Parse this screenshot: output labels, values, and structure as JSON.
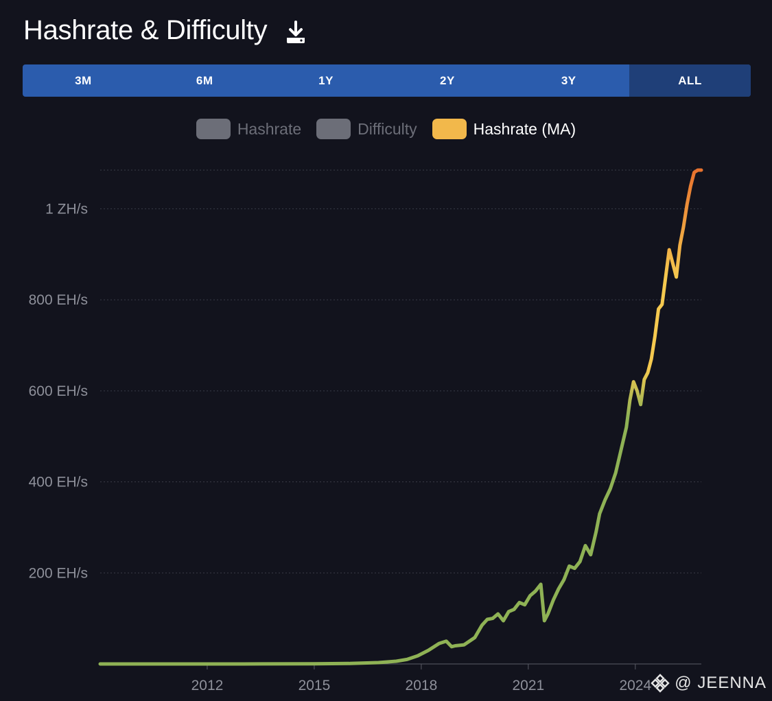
{
  "title": "Hashrate & Difficulty",
  "download_icon": "download-icon",
  "ranges": [
    {
      "label": "3M",
      "active": false
    },
    {
      "label": "6M",
      "active": false
    },
    {
      "label": "1Y",
      "active": false
    },
    {
      "label": "2Y",
      "active": false
    },
    {
      "label": "3Y",
      "active": false
    },
    {
      "label": "ALL",
      "active": true
    }
  ],
  "legend": [
    {
      "label": "Hashrate",
      "color": "#6c6e78",
      "enabled": false
    },
    {
      "label": "Difficulty",
      "color": "#6c6e78",
      "enabled": false
    },
    {
      "label": "Hashrate (MA)",
      "color": "#f2b84b",
      "enabled": true
    }
  ],
  "watermark": {
    "icon": "binance-logo-icon",
    "text": "@ JEENNA"
  },
  "colors": {
    "background": "#12131d",
    "grid": "#3a3c48",
    "line_low": "#8fb255",
    "line_mid": "#f5c94f",
    "line_high": "#e8722e"
  },
  "chart_data": {
    "type": "line",
    "title": "",
    "xlabel": "",
    "ylabel": "",
    "x_ticks": [
      "2012",
      "2015",
      "2018",
      "2021",
      "2024"
    ],
    "y_ticks": [
      {
        "value": 200,
        "label": "200 EH/s"
      },
      {
        "value": 400,
        "label": "400 EH/s"
      },
      {
        "value": 600,
        "label": "600 EH/s"
      },
      {
        "value": 800,
        "label": "800 EH/s"
      },
      {
        "value": 1000,
        "label": "1 ZH/s"
      }
    ],
    "xlim": [
      2009.0,
      2025.85
    ],
    "ylim": [
      0,
      1085
    ],
    "grid": true,
    "series": [
      {
        "name": "Hashrate (MA)",
        "x": [
          2009.0,
          2011.0,
          2013.0,
          2015.0,
          2016.0,
          2016.8,
          2017.3,
          2017.6,
          2017.9,
          2018.2,
          2018.5,
          2018.7,
          2018.85,
          2018.95,
          2019.2,
          2019.5,
          2019.7,
          2019.85,
          2020.0,
          2020.15,
          2020.3,
          2020.45,
          2020.6,
          2020.75,
          2020.9,
          2021.05,
          2021.2,
          2021.35,
          2021.45,
          2021.55,
          2021.7,
          2021.85,
          2022.0,
          2022.15,
          2022.3,
          2022.45,
          2022.6,
          2022.75,
          2022.9,
          2023.0,
          2023.15,
          2023.3,
          2023.45,
          2023.6,
          2023.75,
          2023.85,
          2023.95,
          2024.05,
          2024.15,
          2024.25,
          2024.35,
          2024.45,
          2024.55,
          2024.65,
          2024.75,
          2024.85,
          2024.95,
          2025.05,
          2025.15,
          2025.25,
          2025.35,
          2025.45,
          2025.55,
          2025.65,
          2025.75,
          2025.85
        ],
        "y": [
          0,
          0,
          0,
          0.5,
          1,
          3,
          6,
          10,
          18,
          30,
          45,
          50,
          38,
          40,
          42,
          58,
          85,
          98,
          100,
          110,
          95,
          115,
          120,
          135,
          130,
          150,
          160,
          175,
          95,
          110,
          140,
          165,
          185,
          215,
          210,
          225,
          260,
          240,
          290,
          330,
          360,
          385,
          420,
          470,
          520,
          580,
          620,
          600,
          570,
          625,
          640,
          670,
          720,
          780,
          790,
          850,
          910,
          880,
          850,
          920,
          960,
          1010,
          1050,
          1080,
          1085,
          1085
        ]
      }
    ]
  }
}
